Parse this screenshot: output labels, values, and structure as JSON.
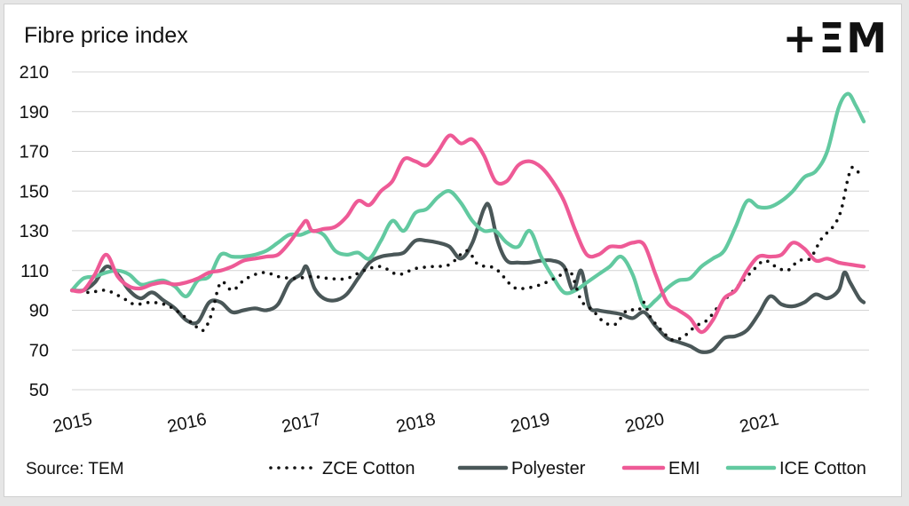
{
  "brand": {
    "logo_text": "+ΞM",
    "logo_color": "#111111"
  },
  "chart_data": {
    "type": "line",
    "title": "Fibre price index",
    "source": "Source: TEM",
    "ylim": [
      50,
      210
    ],
    "yticks": [
      50,
      70,
      90,
      110,
      130,
      150,
      170,
      190,
      210
    ],
    "xlim": [
      2015.0,
      2021.95
    ],
    "xticks": [
      {
        "value": 2015,
        "label": "2015"
      },
      {
        "value": 2016,
        "label": "2016"
      },
      {
        "value": 2017,
        "label": "2017"
      },
      {
        "value": 2018,
        "label": "2018"
      },
      {
        "value": 2019,
        "label": "2019"
      },
      {
        "value": 2020,
        "label": "2020"
      },
      {
        "value": 2021,
        "label": "2021"
      }
    ],
    "grid": "horizontal",
    "legend_position": "bottom",
    "series": [
      {
        "name": "ZCE Cotton",
        "color": "#111111",
        "style": "dotted",
        "points": [
          [
            2015.0,
            100
          ],
          [
            2015.15,
            99
          ],
          [
            2015.3,
            100
          ],
          [
            2015.45,
            96
          ],
          [
            2015.55,
            93
          ],
          [
            2015.7,
            94
          ],
          [
            2015.85,
            92
          ],
          [
            2016.0,
            86
          ],
          [
            2016.08,
            82
          ],
          [
            2016.15,
            80
          ],
          [
            2016.22,
            88
          ],
          [
            2016.3,
            104
          ],
          [
            2016.4,
            100
          ],
          [
            2016.5,
            105
          ],
          [
            2016.6,
            108
          ],
          [
            2016.7,
            109
          ],
          [
            2016.8,
            107
          ],
          [
            2016.95,
            106
          ],
          [
            2017.1,
            107
          ],
          [
            2017.25,
            106
          ],
          [
            2017.4,
            106
          ],
          [
            2017.55,
            110
          ],
          [
            2017.7,
            112
          ],
          [
            2017.85,
            108
          ],
          [
            2018.0,
            111
          ],
          [
            2018.15,
            112
          ],
          [
            2018.3,
            113
          ],
          [
            2018.45,
            120
          ],
          [
            2018.55,
            113
          ],
          [
            2018.7,
            111
          ],
          [
            2018.85,
            102
          ],
          [
            2018.95,
            101
          ],
          [
            2019.1,
            103
          ],
          [
            2019.25,
            107
          ],
          [
            2019.35,
            110
          ],
          [
            2019.45,
            95
          ],
          [
            2019.55,
            90
          ],
          [
            2019.65,
            84
          ],
          [
            2019.75,
            83
          ],
          [
            2019.85,
            90
          ],
          [
            2019.95,
            90
          ],
          [
            2020.0,
            94
          ],
          [
            2020.05,
            87
          ],
          [
            2020.15,
            80
          ],
          [
            2020.25,
            75
          ],
          [
            2020.35,
            77
          ],
          [
            2020.45,
            82
          ],
          [
            2020.55,
            85
          ],
          [
            2020.65,
            92
          ],
          [
            2020.75,
            98
          ],
          [
            2020.85,
            104
          ],
          [
            2020.95,
            110
          ],
          [
            2021.05,
            115
          ],
          [
            2021.15,
            112
          ],
          [
            2021.25,
            110
          ],
          [
            2021.35,
            115
          ],
          [
            2021.45,
            116
          ],
          [
            2021.55,
            126
          ],
          [
            2021.65,
            132
          ],
          [
            2021.72,
            140
          ],
          [
            2021.78,
            156
          ],
          [
            2021.82,
            162
          ],
          [
            2021.88,
            159
          ],
          [
            2021.92,
            157
          ]
        ]
      },
      {
        "name": "Polyester",
        "color": "#4a5758",
        "style": "solid",
        "points": [
          [
            2015.0,
            100
          ],
          [
            2015.1,
            100
          ],
          [
            2015.2,
            104
          ],
          [
            2015.3,
            112
          ],
          [
            2015.4,
            108
          ],
          [
            2015.5,
            100
          ],
          [
            2015.6,
            96
          ],
          [
            2015.7,
            99
          ],
          [
            2015.8,
            95
          ],
          [
            2015.9,
            91
          ],
          [
            2016.0,
            85
          ],
          [
            2016.1,
            84
          ],
          [
            2016.2,
            94
          ],
          [
            2016.3,
            94
          ],
          [
            2016.4,
            89
          ],
          [
            2016.5,
            90
          ],
          [
            2016.6,
            91
          ],
          [
            2016.7,
            90
          ],
          [
            2016.8,
            93
          ],
          [
            2016.9,
            104
          ],
          [
            2017.0,
            108
          ],
          [
            2017.05,
            112
          ],
          [
            2017.12,
            101
          ],
          [
            2017.2,
            96
          ],
          [
            2017.3,
            95
          ],
          [
            2017.4,
            98
          ],
          [
            2017.5,
            106
          ],
          [
            2017.6,
            114
          ],
          [
            2017.7,
            117
          ],
          [
            2017.8,
            118
          ],
          [
            2017.9,
            119
          ],
          [
            2018.0,
            125
          ],
          [
            2018.1,
            125
          ],
          [
            2018.2,
            124
          ],
          [
            2018.3,
            122
          ],
          [
            2018.4,
            116
          ],
          [
            2018.5,
            124
          ],
          [
            2018.6,
            141
          ],
          [
            2018.65,
            142
          ],
          [
            2018.72,
            125
          ],
          [
            2018.8,
            115
          ],
          [
            2018.9,
            114
          ],
          [
            2019.0,
            114
          ],
          [
            2019.1,
            115
          ],
          [
            2019.2,
            115
          ],
          [
            2019.3,
            112
          ],
          [
            2019.38,
            100
          ],
          [
            2019.45,
            110
          ],
          [
            2019.52,
            92
          ],
          [
            2019.6,
            90
          ],
          [
            2019.7,
            89
          ],
          [
            2019.8,
            88
          ],
          [
            2019.9,
            86
          ],
          [
            2020.0,
            89
          ],
          [
            2020.1,
            82
          ],
          [
            2020.2,
            76
          ],
          [
            2020.3,
            74
          ],
          [
            2020.4,
            72
          ],
          [
            2020.5,
            69
          ],
          [
            2020.6,
            70
          ],
          [
            2020.7,
            76
          ],
          [
            2020.8,
            77
          ],
          [
            2020.9,
            80
          ],
          [
            2021.0,
            88
          ],
          [
            2021.1,
            97
          ],
          [
            2021.2,
            93
          ],
          [
            2021.3,
            92
          ],
          [
            2021.4,
            94
          ],
          [
            2021.5,
            98
          ],
          [
            2021.6,
            96
          ],
          [
            2021.7,
            100
          ],
          [
            2021.75,
            109
          ],
          [
            2021.8,
            104
          ],
          [
            2021.88,
            96
          ],
          [
            2021.92,
            94
          ]
        ]
      },
      {
        "name": "EMI",
        "color": "#ee5a96",
        "style": "solid",
        "points": [
          [
            2015.0,
            100
          ],
          [
            2015.1,
            100
          ],
          [
            2015.2,
            108
          ],
          [
            2015.3,
            118
          ],
          [
            2015.4,
            107
          ],
          [
            2015.5,
            102
          ],
          [
            2015.6,
            101
          ],
          [
            2015.7,
            103
          ],
          [
            2015.8,
            104
          ],
          [
            2015.9,
            103
          ],
          [
            2016.0,
            104
          ],
          [
            2016.1,
            106
          ],
          [
            2016.2,
            109
          ],
          [
            2016.3,
            110
          ],
          [
            2016.4,
            112
          ],
          [
            2016.5,
            115
          ],
          [
            2016.6,
            116
          ],
          [
            2016.7,
            117
          ],
          [
            2016.8,
            118
          ],
          [
            2016.9,
            124
          ],
          [
            2017.0,
            132
          ],
          [
            2017.05,
            135
          ],
          [
            2017.1,
            130
          ],
          [
            2017.2,
            131
          ],
          [
            2017.3,
            132
          ],
          [
            2017.4,
            137
          ],
          [
            2017.5,
            145
          ],
          [
            2017.6,
            143
          ],
          [
            2017.7,
            150
          ],
          [
            2017.8,
            155
          ],
          [
            2017.9,
            166
          ],
          [
            2018.0,
            165
          ],
          [
            2018.1,
            163
          ],
          [
            2018.2,
            170
          ],
          [
            2018.3,
            178
          ],
          [
            2018.4,
            174
          ],
          [
            2018.5,
            176
          ],
          [
            2018.6,
            168
          ],
          [
            2018.7,
            155
          ],
          [
            2018.8,
            155
          ],
          [
            2018.9,
            163
          ],
          [
            2019.0,
            165
          ],
          [
            2019.1,
            162
          ],
          [
            2019.2,
            155
          ],
          [
            2019.3,
            145
          ],
          [
            2019.4,
            130
          ],
          [
            2019.5,
            118
          ],
          [
            2019.6,
            118
          ],
          [
            2019.7,
            122
          ],
          [
            2019.8,
            122
          ],
          [
            2019.9,
            124
          ],
          [
            2020.0,
            123
          ],
          [
            2020.1,
            108
          ],
          [
            2020.2,
            94
          ],
          [
            2020.3,
            90
          ],
          [
            2020.4,
            86
          ],
          [
            2020.5,
            79
          ],
          [
            2020.6,
            85
          ],
          [
            2020.7,
            96
          ],
          [
            2020.8,
            100
          ],
          [
            2020.9,
            110
          ],
          [
            2021.0,
            117
          ],
          [
            2021.1,
            117
          ],
          [
            2021.2,
            118
          ],
          [
            2021.3,
            124
          ],
          [
            2021.4,
            121
          ],
          [
            2021.5,
            115
          ],
          [
            2021.6,
            116
          ],
          [
            2021.7,
            114
          ],
          [
            2021.8,
            113
          ],
          [
            2021.92,
            112
          ]
        ]
      },
      {
        "name": "ICE Cotton",
        "color": "#62c9a0",
        "style": "solid",
        "points": [
          [
            2015.0,
            100
          ],
          [
            2015.1,
            106
          ],
          [
            2015.2,
            107
          ],
          [
            2015.3,
            109
          ],
          [
            2015.4,
            110
          ],
          [
            2015.5,
            108
          ],
          [
            2015.6,
            103
          ],
          [
            2015.7,
            104
          ],
          [
            2015.8,
            105
          ],
          [
            2015.9,
            102
          ],
          [
            2016.0,
            97
          ],
          [
            2016.1,
            105
          ],
          [
            2016.2,
            107
          ],
          [
            2016.3,
            118
          ],
          [
            2016.4,
            117
          ],
          [
            2016.5,
            117
          ],
          [
            2016.6,
            118
          ],
          [
            2016.7,
            120
          ],
          [
            2016.8,
            124
          ],
          [
            2016.9,
            128
          ],
          [
            2017.0,
            128
          ],
          [
            2017.1,
            130
          ],
          [
            2017.2,
            128
          ],
          [
            2017.3,
            120
          ],
          [
            2017.4,
            118
          ],
          [
            2017.5,
            119
          ],
          [
            2017.6,
            116
          ],
          [
            2017.7,
            125
          ],
          [
            2017.8,
            135
          ],
          [
            2017.9,
            130
          ],
          [
            2018.0,
            139
          ],
          [
            2018.1,
            141
          ],
          [
            2018.2,
            147
          ],
          [
            2018.3,
            150
          ],
          [
            2018.4,
            144
          ],
          [
            2018.5,
            135
          ],
          [
            2018.6,
            130
          ],
          [
            2018.7,
            130
          ],
          [
            2018.8,
            124
          ],
          [
            2018.9,
            122
          ],
          [
            2019.0,
            130
          ],
          [
            2019.1,
            117
          ],
          [
            2019.2,
            107
          ],
          [
            2019.3,
            99
          ],
          [
            2019.4,
            100
          ],
          [
            2019.5,
            104
          ],
          [
            2019.6,
            108
          ],
          [
            2019.7,
            112
          ],
          [
            2019.8,
            117
          ],
          [
            2019.9,
            108
          ],
          [
            2020.0,
            92
          ],
          [
            2020.1,
            95
          ],
          [
            2020.2,
            101
          ],
          [
            2020.3,
            105
          ],
          [
            2020.4,
            106
          ],
          [
            2020.5,
            112
          ],
          [
            2020.6,
            116
          ],
          [
            2020.7,
            120
          ],
          [
            2020.8,
            132
          ],
          [
            2020.9,
            145
          ],
          [
            2021.0,
            142
          ],
          [
            2021.1,
            142
          ],
          [
            2021.2,
            145
          ],
          [
            2021.3,
            150
          ],
          [
            2021.4,
            157
          ],
          [
            2021.5,
            160
          ],
          [
            2021.6,
            170
          ],
          [
            2021.7,
            192
          ],
          [
            2021.78,
            199
          ],
          [
            2021.85,
            193
          ],
          [
            2021.92,
            185
          ]
        ]
      }
    ]
  }
}
